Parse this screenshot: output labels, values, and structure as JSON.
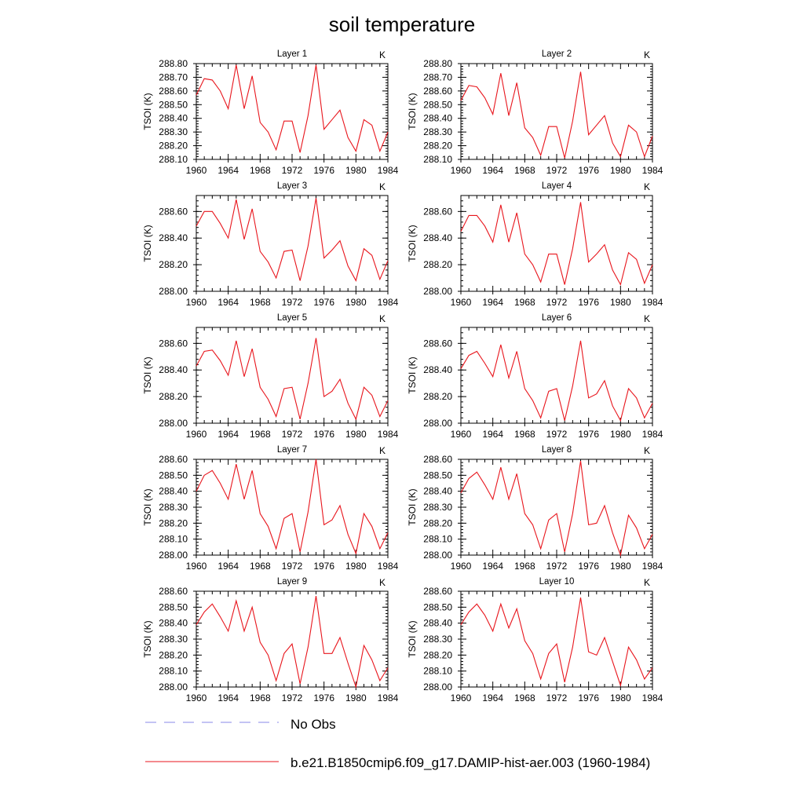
{
  "title": "soil temperature",
  "legend": [
    {
      "label": "No Obs",
      "color": "#8a8ae8",
      "dash": true
    },
    {
      "label": "b.e21.B1850cmip6.f09_g17.DAMIP-hist-aer.003 (1960-1984)",
      "color": "#e8151c",
      "dash": false
    }
  ],
  "chart_data": [
    {
      "type": "line",
      "title": "Layer 1",
      "unit": "K",
      "ylabel": "TSOI  (K)",
      "xlim": [
        1960,
        1984
      ],
      "ylim": [
        288.1,
        288.8
      ],
      "xticks": [
        "1960",
        "1964",
        "1968",
        "1972",
        "1976",
        "1980",
        "1984"
      ],
      "yticks": [
        "288.10",
        "288.20",
        "288.30",
        "288.40",
        "288.50",
        "288.60",
        "288.70",
        "288.80"
      ],
      "series": [
        {
          "color": "#e8151c",
          "x": [
            1960,
            1961,
            1962,
            1963,
            1964,
            1965,
            1966,
            1967,
            1968,
            1969,
            1970,
            1971,
            1972,
            1973,
            1974,
            1975,
            1976,
            1977,
            1978,
            1979,
            1980,
            1981,
            1982,
            1983,
            1984
          ],
          "values": [
            288.57,
            288.69,
            288.68,
            288.6,
            288.47,
            288.79,
            288.47,
            288.71,
            288.37,
            288.3,
            288.17,
            288.38,
            288.38,
            288.15,
            288.42,
            288.79,
            288.32,
            288.39,
            288.46,
            288.26,
            288.16,
            288.39,
            288.35,
            288.16,
            288.3
          ]
        }
      ]
    },
    {
      "type": "line",
      "title": "Layer 2",
      "unit": "K",
      "ylabel": "TSOI  (K)",
      "xlim": [
        1960,
        1984
      ],
      "ylim": [
        288.1,
        288.8
      ],
      "xticks": [
        "1960",
        "1964",
        "1968",
        "1972",
        "1976",
        "1980",
        "1984"
      ],
      "yticks": [
        "288.10",
        "288.20",
        "288.30",
        "288.40",
        "288.50",
        "288.60",
        "288.70",
        "288.80"
      ],
      "series": [
        {
          "color": "#e8151c",
          "x": [
            1960,
            1961,
            1962,
            1963,
            1964,
            1965,
            1966,
            1967,
            1968,
            1969,
            1970,
            1971,
            1972,
            1973,
            1974,
            1975,
            1976,
            1977,
            1978,
            1979,
            1980,
            1981,
            1982,
            1983,
            1984
          ],
          "values": [
            288.53,
            288.64,
            288.63,
            288.55,
            288.43,
            288.73,
            288.42,
            288.66,
            288.33,
            288.26,
            288.13,
            288.34,
            288.34,
            288.11,
            288.38,
            288.74,
            288.28,
            288.35,
            288.42,
            288.22,
            288.12,
            288.35,
            288.3,
            288.12,
            288.27
          ]
        }
      ]
    },
    {
      "type": "line",
      "title": "Layer 3",
      "unit": "K",
      "ylabel": "TSOI  (K)",
      "xlim": [
        1960,
        1984
      ],
      "ylim": [
        288.0,
        288.72
      ],
      "xticks": [
        "1960",
        "1964",
        "1968",
        "1972",
        "1976",
        "1980",
        "1984"
      ],
      "yticks": [
        "288.00",
        "288.20",
        "288.40",
        "288.60"
      ],
      "series": [
        {
          "color": "#e8151c",
          "x": [
            1960,
            1961,
            1962,
            1963,
            1964,
            1965,
            1966,
            1967,
            1968,
            1969,
            1970,
            1971,
            1972,
            1973,
            1974,
            1975,
            1976,
            1977,
            1978,
            1979,
            1980,
            1981,
            1982,
            1983,
            1984
          ],
          "values": [
            288.49,
            288.6,
            288.6,
            288.51,
            288.4,
            288.69,
            288.39,
            288.62,
            288.3,
            288.22,
            288.1,
            288.3,
            288.31,
            288.08,
            288.34,
            288.7,
            288.25,
            288.31,
            288.38,
            288.19,
            288.08,
            288.32,
            288.27,
            288.09,
            288.23
          ]
        }
      ]
    },
    {
      "type": "line",
      "title": "Layer 4",
      "unit": "K",
      "ylabel": "TSOI  (K)",
      "xlim": [
        1960,
        1984
      ],
      "ylim": [
        288.0,
        288.72
      ],
      "xticks": [
        "1960",
        "1964",
        "1968",
        "1972",
        "1976",
        "1980",
        "1984"
      ],
      "yticks": [
        "288.00",
        "288.20",
        "288.40",
        "288.60"
      ],
      "series": [
        {
          "color": "#e8151c",
          "x": [
            1960,
            1961,
            1962,
            1963,
            1964,
            1965,
            1966,
            1967,
            1968,
            1969,
            1970,
            1971,
            1972,
            1973,
            1974,
            1975,
            1976,
            1977,
            1978,
            1979,
            1980,
            1981,
            1982,
            1983,
            1984
          ],
          "values": [
            288.45,
            288.57,
            288.57,
            288.49,
            288.37,
            288.65,
            288.37,
            288.59,
            288.28,
            288.2,
            288.07,
            288.28,
            288.28,
            288.05,
            288.32,
            288.67,
            288.22,
            288.28,
            288.35,
            288.16,
            288.05,
            288.29,
            288.24,
            288.06,
            288.2
          ]
        }
      ]
    },
    {
      "type": "line",
      "title": "Layer 5",
      "unit": "K",
      "ylabel": "TSOI  (K)",
      "xlim": [
        1960,
        1984
      ],
      "ylim": [
        288.0,
        288.72
      ],
      "xticks": [
        "1960",
        "1964",
        "1968",
        "1972",
        "1976",
        "1980",
        "1984"
      ],
      "yticks": [
        "288.00",
        "288.20",
        "288.40",
        "288.60"
      ],
      "series": [
        {
          "color": "#e8151c",
          "x": [
            1960,
            1961,
            1962,
            1963,
            1964,
            1965,
            1966,
            1967,
            1968,
            1969,
            1970,
            1971,
            1972,
            1973,
            1974,
            1975,
            1976,
            1977,
            1978,
            1979,
            1980,
            1981,
            1982,
            1983,
            1984
          ],
          "values": [
            288.43,
            288.54,
            288.55,
            288.47,
            288.36,
            288.62,
            288.35,
            288.56,
            288.27,
            288.18,
            288.05,
            288.26,
            288.27,
            288.03,
            288.3,
            288.64,
            288.2,
            288.24,
            288.33,
            288.15,
            288.03,
            288.27,
            288.21,
            288.05,
            288.17
          ]
        }
      ]
    },
    {
      "type": "line",
      "title": "Layer 6",
      "unit": "K",
      "ylabel": "TSOI  (K)",
      "xlim": [
        1960,
        1984
      ],
      "ylim": [
        288.0,
        288.72
      ],
      "xticks": [
        "1960",
        "1964",
        "1968",
        "1972",
        "1976",
        "1980",
        "1984"
      ],
      "yticks": [
        "288.00",
        "288.20",
        "288.40",
        "288.60"
      ],
      "series": [
        {
          "color": "#e8151c",
          "x": [
            1960,
            1961,
            1962,
            1963,
            1964,
            1965,
            1966,
            1967,
            1968,
            1969,
            1970,
            1971,
            1972,
            1973,
            1974,
            1975,
            1976,
            1977,
            1978,
            1979,
            1980,
            1981,
            1982,
            1983,
            1984
          ],
          "values": [
            288.41,
            288.51,
            288.54,
            288.45,
            288.35,
            288.59,
            288.34,
            288.54,
            288.26,
            288.17,
            288.04,
            288.24,
            288.26,
            288.02,
            288.28,
            288.62,
            288.19,
            288.22,
            288.32,
            288.13,
            288.02,
            288.26,
            288.19,
            288.04,
            288.15
          ]
        }
      ]
    },
    {
      "type": "line",
      "title": "Layer 7",
      "unit": "K",
      "ylabel": "TSOI  (K)",
      "xlim": [
        1960,
        1984
      ],
      "ylim": [
        288.0,
        288.6
      ],
      "xticks": [
        "1960",
        "1964",
        "1968",
        "1972",
        "1976",
        "1980",
        "1984"
      ],
      "yticks": [
        "288.00",
        "288.10",
        "288.20",
        "288.30",
        "288.40",
        "288.50",
        "288.60"
      ],
      "series": [
        {
          "color": "#e8151c",
          "x": [
            1960,
            1961,
            1962,
            1963,
            1964,
            1965,
            1966,
            1967,
            1968,
            1969,
            1970,
            1971,
            1972,
            1973,
            1974,
            1975,
            1976,
            1977,
            1978,
            1979,
            1980,
            1981,
            1982,
            1983,
            1984
          ],
          "values": [
            288.4,
            288.5,
            288.53,
            288.45,
            288.35,
            288.57,
            288.35,
            288.53,
            288.26,
            288.18,
            288.04,
            288.23,
            288.26,
            288.02,
            288.27,
            288.6,
            288.19,
            288.22,
            288.31,
            288.13,
            288.01,
            288.26,
            288.18,
            288.04,
            288.14
          ]
        }
      ]
    },
    {
      "type": "line",
      "title": "Layer 8",
      "unit": "K",
      "ylabel": "TSOI  (K)",
      "xlim": [
        1960,
        1984
      ],
      "ylim": [
        288.0,
        288.6
      ],
      "xticks": [
        "1960",
        "1964",
        "1968",
        "1972",
        "1976",
        "1980",
        "1984"
      ],
      "yticks": [
        "288.00",
        "288.10",
        "288.20",
        "288.30",
        "288.40",
        "288.50",
        "288.60"
      ],
      "series": [
        {
          "color": "#e8151c",
          "x": [
            1960,
            1961,
            1962,
            1963,
            1964,
            1965,
            1966,
            1967,
            1968,
            1969,
            1970,
            1971,
            1972,
            1973,
            1974,
            1975,
            1976,
            1977,
            1978,
            1979,
            1980,
            1981,
            1982,
            1983,
            1984
          ],
          "values": [
            288.39,
            288.48,
            288.52,
            288.44,
            288.35,
            288.55,
            288.35,
            288.51,
            288.26,
            288.19,
            288.04,
            288.22,
            288.26,
            288.02,
            288.26,
            288.59,
            288.19,
            288.2,
            288.31,
            288.14,
            288.0,
            288.25,
            288.17,
            288.04,
            288.13
          ]
        }
      ]
    },
    {
      "type": "line",
      "title": "Layer 9",
      "unit": "K",
      "ylabel": "TSOI  (K)",
      "xlim": [
        1960,
        1984
      ],
      "ylim": [
        288.0,
        288.6
      ],
      "xticks": [
        "1960",
        "1964",
        "1968",
        "1972",
        "1976",
        "1980",
        "1984"
      ],
      "yticks": [
        "288.00",
        "288.10",
        "288.20",
        "288.30",
        "288.40",
        "288.50",
        "288.60"
      ],
      "series": [
        {
          "color": "#e8151c",
          "x": [
            1960,
            1961,
            1962,
            1963,
            1964,
            1965,
            1966,
            1967,
            1968,
            1969,
            1970,
            1971,
            1972,
            1973,
            1974,
            1975,
            1976,
            1977,
            1978,
            1979,
            1980,
            1981,
            1982,
            1983,
            1984
          ],
          "values": [
            288.39,
            288.47,
            288.52,
            288.44,
            288.35,
            288.54,
            288.35,
            288.5,
            288.28,
            288.2,
            288.04,
            288.21,
            288.27,
            288.02,
            288.25,
            288.57,
            288.21,
            288.21,
            288.31,
            288.15,
            288.0,
            288.26,
            288.17,
            288.04,
            288.12
          ]
        }
      ]
    },
    {
      "type": "line",
      "title": "Layer 10",
      "unit": "K",
      "ylabel": "TSOI  (K)",
      "xlim": [
        1960,
        1984
      ],
      "ylim": [
        288.0,
        288.6
      ],
      "xticks": [
        "1960",
        "1964",
        "1968",
        "1972",
        "1976",
        "1980",
        "1984"
      ],
      "yticks": [
        "288.00",
        "288.10",
        "288.20",
        "288.30",
        "288.40",
        "288.50",
        "288.60"
      ],
      "series": [
        {
          "color": "#e8151c",
          "x": [
            1960,
            1961,
            1962,
            1963,
            1964,
            1965,
            1966,
            1967,
            1968,
            1969,
            1970,
            1971,
            1972,
            1973,
            1974,
            1975,
            1976,
            1977,
            1978,
            1979,
            1980,
            1981,
            1982,
            1983,
            1984
          ],
          "values": [
            288.39,
            288.47,
            288.52,
            288.45,
            288.35,
            288.52,
            288.37,
            288.49,
            288.29,
            288.21,
            288.05,
            288.21,
            288.27,
            288.03,
            288.25,
            288.56,
            288.22,
            288.2,
            288.31,
            288.16,
            288.01,
            288.25,
            288.17,
            288.05,
            288.12
          ]
        }
      ]
    }
  ]
}
